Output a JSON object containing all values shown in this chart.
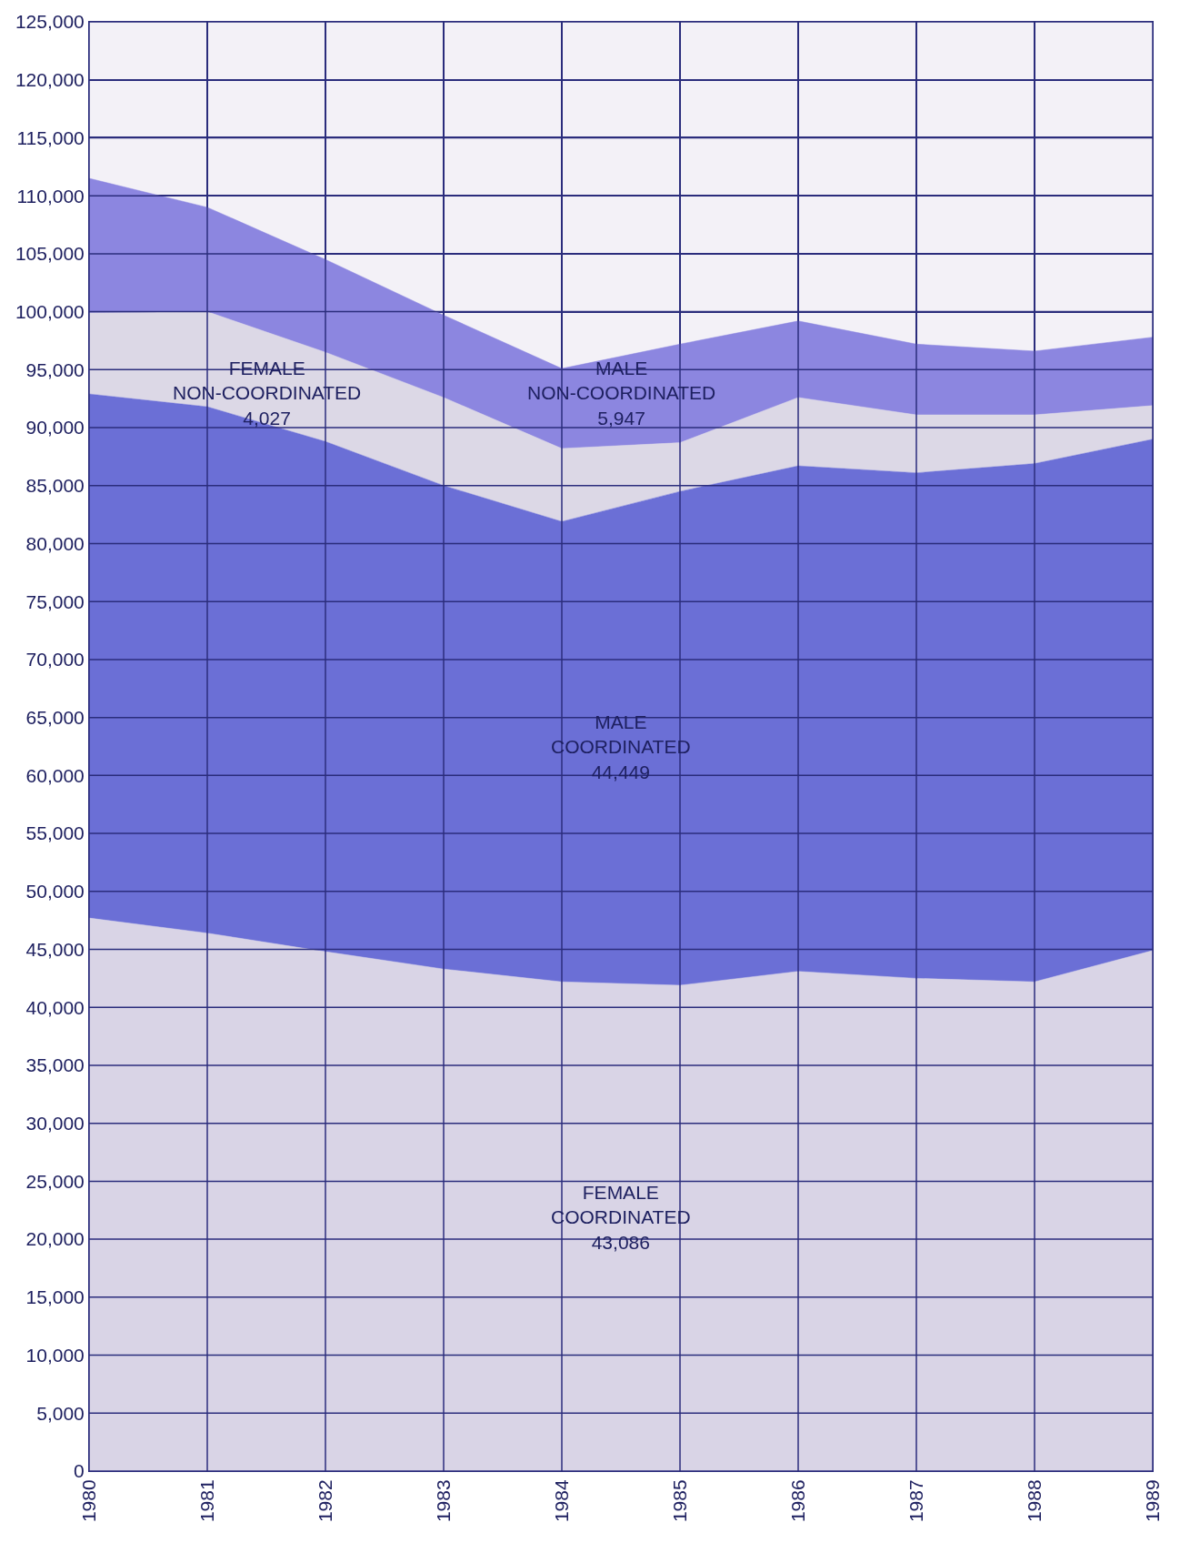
{
  "chart_data": {
    "type": "area",
    "stacked": true,
    "grid": true,
    "x": [
      1980,
      1981,
      1982,
      1983,
      1984,
      1985,
      1986,
      1987,
      1988,
      1989
    ],
    "xlim": [
      1980,
      1989
    ],
    "xticks": [
      1980,
      1981,
      1982,
      1983,
      1984,
      1985,
      1986,
      1987,
      1988,
      1989
    ],
    "ylim": [
      0,
      125000
    ],
    "yticks": [
      0,
      {
        "value": 5000,
        "label": "5,000"
      },
      {
        "value": 10000,
        "label": "10,000"
      },
      {
        "value": 15000,
        "label": "15,000"
      },
      {
        "value": 20000,
        "label": "20,000"
      },
      {
        "value": 25000,
        "label": "25,000"
      },
      {
        "value": 30000,
        "label": "30,000"
      },
      {
        "value": 35000,
        "label": "35,000"
      },
      {
        "value": 40000,
        "label": "40,000"
      },
      {
        "value": 45000,
        "label": "45,000"
      },
      {
        "value": 50000,
        "label": "50,000"
      },
      {
        "value": 55000,
        "label": "55,000"
      },
      {
        "value": 60000,
        "label": "60,000"
      },
      {
        "value": 65000,
        "label": "65,000"
      },
      {
        "value": 70000,
        "label": "70,000"
      },
      {
        "value": 75000,
        "label": "75,000"
      },
      {
        "value": 80000,
        "label": "80,000"
      },
      {
        "value": 85000,
        "label": "85,000"
      },
      {
        "value": 90000,
        "label": "90,000"
      },
      {
        "value": 95000,
        "label": "95,000"
      },
      {
        "value": 100000,
        "label": "100,000"
      },
      {
        "value": 105000,
        "label": "105,000"
      },
      {
        "value": 110000,
        "label": "110,000"
      },
      {
        "value": 115000,
        "label": "115,000"
      },
      {
        "value": 120000,
        "label": "120,000"
      },
      {
        "value": 125000,
        "label": "125,000"
      }
    ],
    "series": [
      {
        "color": "#d9d4e6",
        "values": [
          47700,
          46400,
          44800,
          43300,
          42200,
          41900,
          43100,
          42500,
          42200,
          44900
        ]
      },
      {
        "color": "#6b6fd6",
        "values": [
          45200,
          45400,
          44000,
          41700,
          39700,
          42600,
          43600,
          43600,
          44700,
          44100
        ]
      },
      {
        "color": "#dcd8e6",
        "values": [
          7000,
          8200,
          7700,
          7600,
          6300,
          4200,
          5900,
          5000,
          4200,
          2900
        ]
      },
      {
        "color": "#8c86e0",
        "values": [
          11600,
          9000,
          8000,
          7100,
          6900,
          8500,
          6600,
          6100,
          5500,
          5900
        ]
      }
    ],
    "annotations": [
      "FEMALE\nNON-COORDINATED\n4,027",
      "MALE\nNON-COORDINATED\n5,947",
      "MALE\nCOORDINATED\n44,449",
      "FEMALE\nCOORDINATED\n43,086"
    ]
  }
}
